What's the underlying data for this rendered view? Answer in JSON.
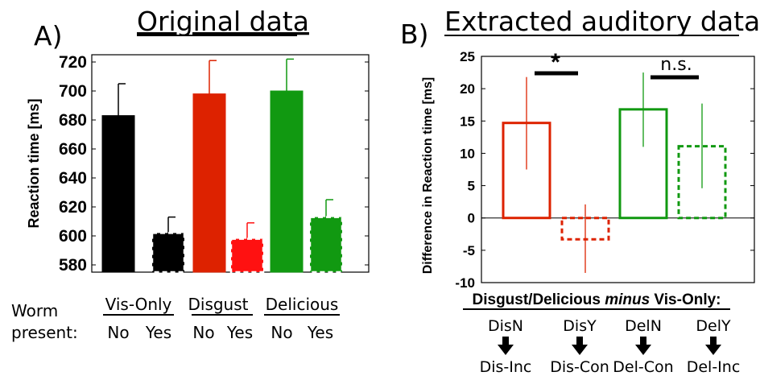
{
  "panel_a": {
    "letter": "A)",
    "title": "Original data",
    "ylabel": "Reaction time [ms]",
    "row_labels": [
      "Worm",
      "present:"
    ],
    "groups": [
      "Vis-Only",
      "Disgust",
      "Delicious"
    ],
    "present_labels": [
      "No",
      "Yes",
      "No",
      "Yes",
      "No",
      "Yes"
    ]
  },
  "panel_b": {
    "letter": "B)",
    "title": "Extracted auditory data",
    "ylabel": "Difference in Reaction time [ms]",
    "subtitle_parts": [
      "Disgust/Delicious ",
      "minus",
      " Vis-Only:"
    ],
    "sig_labels": [
      "*",
      "n.s."
    ],
    "top_labels": [
      "DisN",
      "DisY",
      "DelN",
      "DelY"
    ],
    "bottom_labels": [
      "Dis-Inc",
      "Dis-Con",
      "Del-Con",
      "Del-Inc"
    ]
  },
  "chart_data": [
    {
      "type": "bar",
      "title": "Original data",
      "ylabel": "Reaction time [ms]",
      "ylim": [
        575,
        725
      ],
      "yticks": [
        580,
        600,
        620,
        640,
        660,
        680,
        700,
        720
      ],
      "categories": [
        "No",
        "Yes",
        "No",
        "Yes",
        "No",
        "Yes"
      ],
      "groups": [
        "Vis-Only",
        "Disgust",
        "Delicious"
      ],
      "values": [
        683,
        602,
        698,
        598,
        700,
        613
      ],
      "errors": [
        22,
        11,
        23,
        11,
        22,
        12
      ],
      "colors": [
        "#000000",
        "#000000",
        "#dd2200",
        "#ff1111",
        "#119911",
        "#119911"
      ],
      "styles": [
        "solid",
        "dashed",
        "solid",
        "dashed",
        "solid",
        "dashed"
      ]
    },
    {
      "type": "bar",
      "title": "Extracted auditory data",
      "ylabel": "Difference in Reaction time [ms]",
      "ylim": [
        -10,
        25
      ],
      "yticks": [
        -10,
        -5,
        0,
        5,
        10,
        15,
        20,
        25
      ],
      "categories": [
        "DisN",
        "DisY",
        "DelN",
        "DelY"
      ],
      "values": [
        14.7,
        -3.3,
        16.8,
        11.1
      ],
      "err_low": [
        7.5,
        -8.5,
        11.0,
        4.6
      ],
      "err_high": [
        21.8,
        2.1,
        22.5,
        17.7
      ],
      "colors": [
        "#dd2200",
        "#dd2200",
        "#119911",
        "#119911"
      ],
      "styles": [
        "solid",
        "dashed",
        "solid",
        "dashed"
      ],
      "significance": [
        {
          "label": "*",
          "between": [
            0,
            1
          ]
        },
        {
          "label": "n.s.",
          "between": [
            2,
            3
          ]
        }
      ]
    }
  ]
}
